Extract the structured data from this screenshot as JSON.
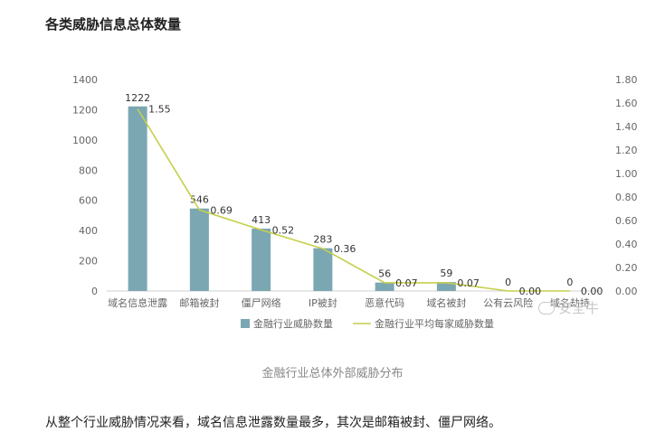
{
  "heading": "各类威胁信息总体数量",
  "caption": "金融行业总体外部威胁分布",
  "paragraph": "从整个行业威胁情况来看，域名信息泄露数量最多，其次是邮箱被封、僵尸网络。",
  "watermark": {
    "text": "安全牛",
    "icon": "wechat-icon"
  },
  "colors": {
    "bar": "#7ba7b3",
    "line": "#c6cf4a",
    "axis_text": "#666666",
    "grid": "#e6e6e6"
  },
  "chart_data": {
    "type": "bar",
    "categories": [
      "域名信息泄露",
      "邮箱被封",
      "僵尸网络",
      "IP被封",
      "恶意代码",
      "域名被封",
      "公有云风险",
      "域名劫持"
    ],
    "series": [
      {
        "name": "金融行业威胁数量",
        "type": "bar",
        "axis": "left",
        "values": [
          1222,
          546,
          413,
          283,
          56,
          59,
          0,
          0
        ],
        "labels": [
          "1222",
          "546",
          "413",
          "283",
          "56",
          "59",
          "0",
          "0"
        ]
      },
      {
        "name": "金融行业平均每家威胁数量",
        "type": "line",
        "axis": "right",
        "values": [
          1.55,
          0.69,
          0.52,
          0.36,
          0.07,
          0.07,
          0.0,
          0.0
        ],
        "labels": [
          "1.55",
          "0.69",
          "0.52",
          "0.36",
          "0.07",
          "0.07",
          "0.00",
          "0.00"
        ]
      }
    ],
    "y_left": {
      "min": 0,
      "max": 1400,
      "ticks": [
        "0",
        "200",
        "400",
        "600",
        "800",
        "1000",
        "1200",
        "1400"
      ]
    },
    "y_right": {
      "min": 0,
      "max": 1.8,
      "ticks": [
        "0.00",
        "0.20",
        "0.40",
        "0.60",
        "0.80",
        "1.00",
        "1.20",
        "1.40",
        "1.60",
        "1.80"
      ]
    },
    "grid": false,
    "legend_position": "bottom"
  }
}
